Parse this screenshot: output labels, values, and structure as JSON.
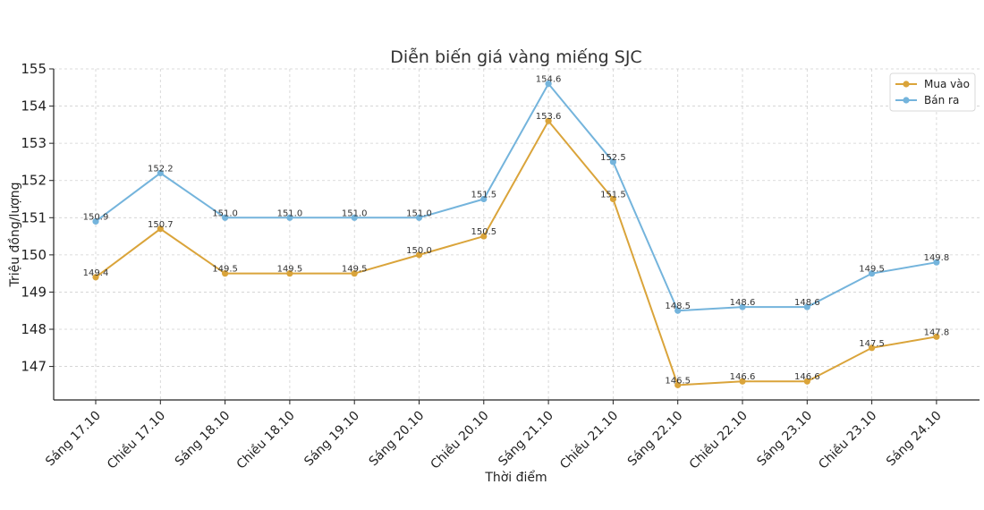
{
  "chart_data": {
    "type": "line",
    "title": "Diễn biến giá vàng miếng SJC",
    "xlabel": "Thời điểm",
    "ylabel": "Triệu đồng/lượng",
    "categories": [
      "Sáng 17.10",
      "Chiều 17.10",
      "Sáng 18.10",
      "Chiều 18.10",
      "Sáng 19.10",
      "Sáng 20.10",
      "Chiều 20.10",
      "Sáng 21.10",
      "Chiều 21.10",
      "Sáng 22.10",
      "Chiều 22.10",
      "Sáng 23.10",
      "Chiều 23.10",
      "Sáng 24.10"
    ],
    "ylim": [
      146.1,
      155
    ],
    "yticks": [
      147,
      148,
      149,
      150,
      151,
      152,
      153,
      154,
      155
    ],
    "grid": true,
    "legend_position": "top-right",
    "series": [
      {
        "name": "Mua vào",
        "color": "#DAA43A",
        "values": [
          149.4,
          150.7,
          149.5,
          149.5,
          149.5,
          150.0,
          150.5,
          153.6,
          151.5,
          146.5,
          146.6,
          146.6,
          147.5,
          147.8
        ],
        "labels": [
          "149.4",
          "150.7",
          "149.5",
          "149.5",
          "149.5",
          "150.0",
          "150.5",
          "153.6",
          "151.5",
          "146.5",
          "146.6",
          "146.6",
          "147.5",
          "147.8"
        ]
      },
      {
        "name": "Bán ra",
        "color": "#74B4DC",
        "values": [
          150.9,
          152.2,
          151.0,
          151.0,
          151.0,
          151.0,
          151.5,
          154.6,
          152.5,
          148.5,
          148.6,
          148.6,
          149.5,
          149.8
        ],
        "labels": [
          "150.9",
          "152.2",
          "151.0",
          "151.0",
          "151.0",
          "151.0",
          "151.5",
          "154.6",
          "152.5",
          "148.5",
          "148.6",
          "148.6",
          "149.5",
          "149.8"
        ]
      }
    ]
  }
}
